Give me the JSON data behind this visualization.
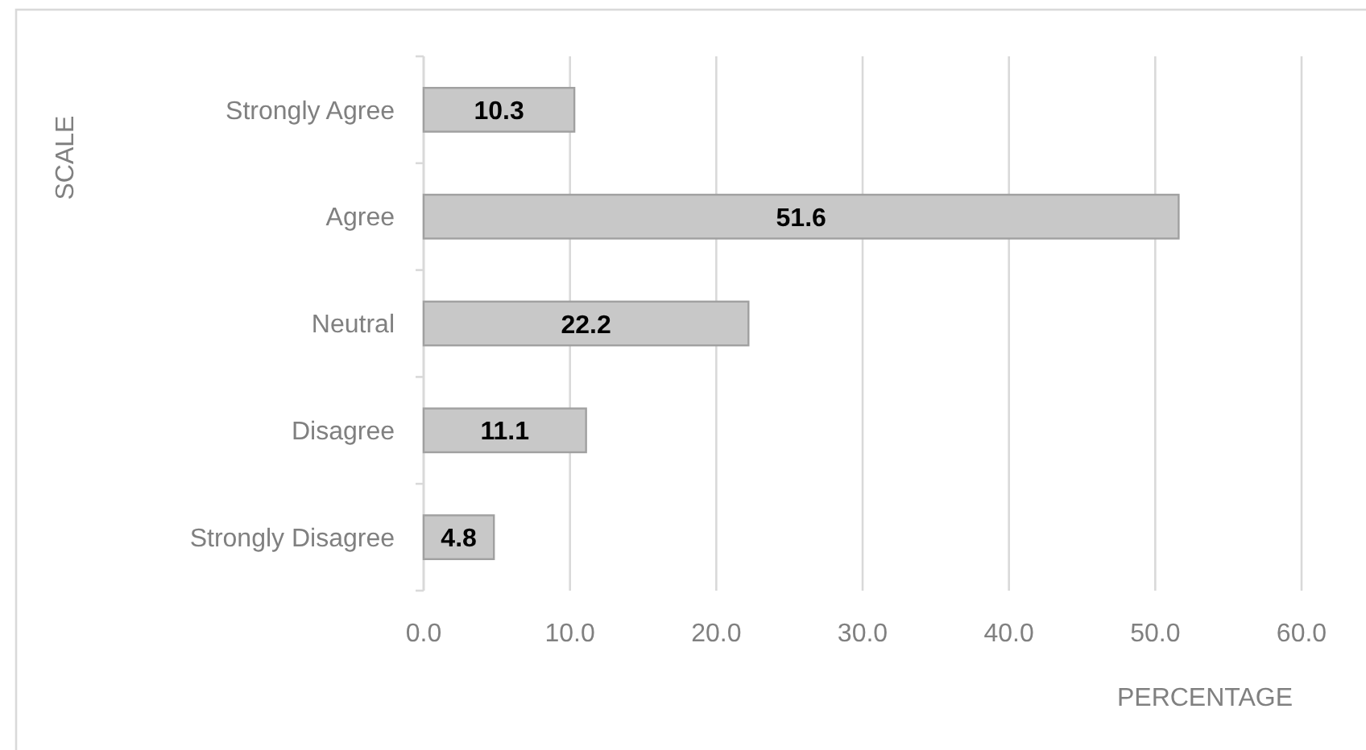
{
  "chart_data": {
    "type": "bar",
    "orientation": "horizontal",
    "categories": [
      "Strongly Agree",
      "Agree",
      "Neutral",
      "Disagree",
      "Strongly Disagree"
    ],
    "values": [
      10.3,
      51.6,
      22.2,
      11.1,
      4.8
    ],
    "color": "#c8c8c8",
    "xlim": [
      0,
      60
    ],
    "xticks": [
      {
        "value": 0,
        "label": "0.0"
      },
      {
        "value": 10,
        "label": "10.0"
      },
      {
        "value": 20,
        "label": "20.0"
      },
      {
        "value": 30,
        "label": "30.0"
      },
      {
        "value": 40,
        "label": "40.0"
      },
      {
        "value": 50,
        "label": "50.0"
      },
      {
        "value": 60,
        "label": "60.0"
      }
    ],
    "xlabel": "PERCENTAGE",
    "ylabel": "SCALE",
    "grid": "x",
    "data_labels": true
  }
}
